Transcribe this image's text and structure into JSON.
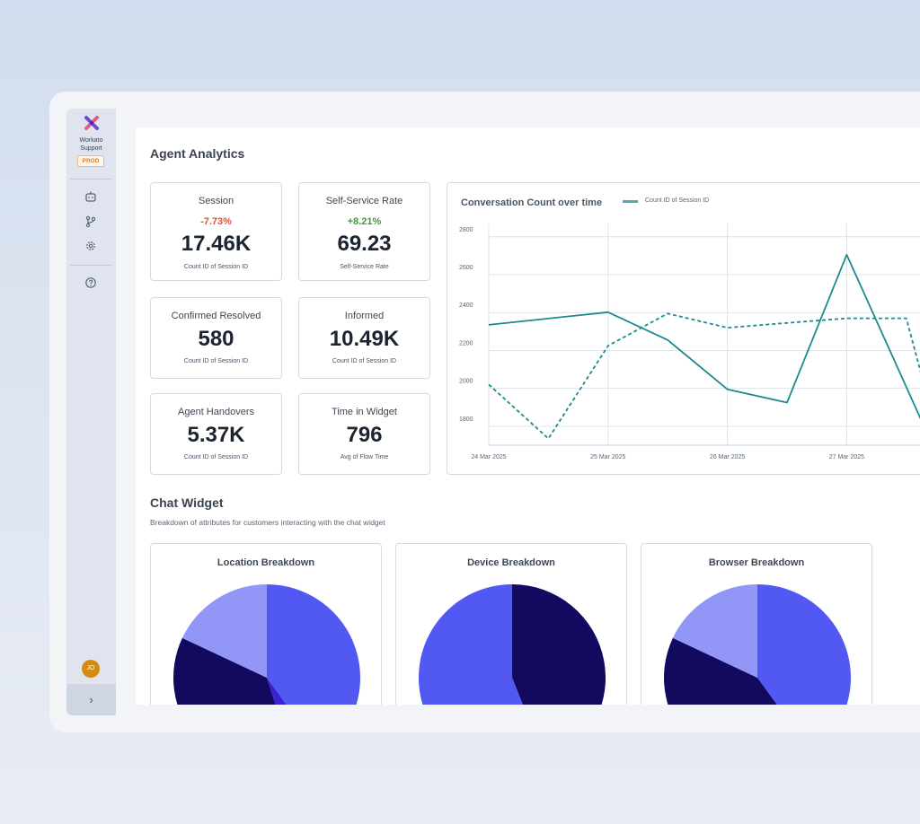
{
  "sidebar": {
    "org_name_line1": "Workato",
    "org_name_line2": "Support",
    "env_badge": "PROD",
    "nav_icons": [
      "robot-icon",
      "branch-icon",
      "gear-icon",
      "help-icon"
    ],
    "avatar_initials": "JO",
    "expand_icon": "chevron-right-icon"
  },
  "page": {
    "title": "Agent Analytics"
  },
  "kpis": [
    {
      "title": "Session",
      "delta": "-7.73%",
      "value": "17.46K",
      "sub": "Count ID of Session ID"
    },
    {
      "title": "Self-Service Rate",
      "delta": "+8.21%",
      "value": "69.23",
      "sub": "Self-Service Rate"
    },
    {
      "title": "Confirmed Resolved",
      "value": "580",
      "sub": "Count ID of Session ID"
    },
    {
      "title": "Informed",
      "value": "10.49K",
      "sub": "Count ID of Session ID"
    },
    {
      "title": "Agent Handovers",
      "value": "5.37K",
      "sub": "Count ID of Session ID"
    },
    {
      "title": "Time in Widget",
      "value": "796",
      "sub": "Avg of Flow Time"
    }
  ],
  "colors": {
    "delta_negative": "#e0513a",
    "delta_positive": "#3f9b3a",
    "line_series": "#1e8a8f",
    "pie_dark": "#120a5e",
    "pie_mid": "#5159f2",
    "pie_light": "#9196f7",
    "pie_purple": "#3a22d1"
  },
  "chart_data": {
    "type": "line",
    "title": "Conversation Count over time",
    "x_tick_labels": [
      "24 Mar 2025",
      "25 Mar 2025",
      "26 Mar 2025",
      "27 Mar 2025"
    ],
    "y_ticks": [
      1800,
      2000,
      2200,
      2400,
      2600,
      2800
    ],
    "ylim": [
      1700,
      2870
    ],
    "xlim": [
      0,
      3.72
    ],
    "grid": true,
    "legend": {
      "placement": "top",
      "label": "Count ID of Session ID"
    },
    "series": [
      {
        "name": "Count ID of Session ID",
        "style": "solid",
        "points": [
          [
            0,
            2335
          ],
          [
            1,
            2402
          ],
          [
            1.5,
            2255
          ],
          [
            2,
            1995
          ],
          [
            2.5,
            1925
          ],
          [
            3,
            2705
          ],
          [
            3.72,
            1700
          ]
        ]
      },
      {
        "style": "dashed",
        "points": [
          [
            0,
            2020
          ],
          [
            0.5,
            1735
          ],
          [
            1,
            2225
          ],
          [
            1.5,
            2395
          ],
          [
            2,
            2320
          ],
          [
            2.5,
            2345
          ],
          [
            3,
            2370
          ],
          [
            3.5,
            2370
          ],
          [
            3.72,
            1850
          ]
        ]
      }
    ]
  },
  "chat_widget": {
    "title": "Chat Widget",
    "subtitle": "Breakdown of attributes for customers interacting with the chat widget",
    "charts": [
      {
        "title": "Location Breakdown",
        "type": "pie",
        "slices": [
          {
            "value": 0.4,
            "color": "#5159f2"
          },
          {
            "value": 0.05,
            "color": "#3a22d1"
          },
          {
            "value": 0.37,
            "color": "#120a5e"
          },
          {
            "value": 0.18,
            "color": "#9196f7"
          }
        ]
      },
      {
        "title": "Device Breakdown",
        "type": "pie",
        "slices": [
          {
            "value": 0.44,
            "color": "#120a5e"
          },
          {
            "value": 0.56,
            "color": "#5159f2"
          }
        ]
      },
      {
        "title": "Browser Breakdown",
        "type": "pie",
        "slices": [
          {
            "value": 0.4,
            "color": "#5159f2"
          },
          {
            "value": 0.42,
            "color": "#120a5e"
          },
          {
            "value": 0.18,
            "color": "#9196f7"
          }
        ]
      }
    ]
  }
}
